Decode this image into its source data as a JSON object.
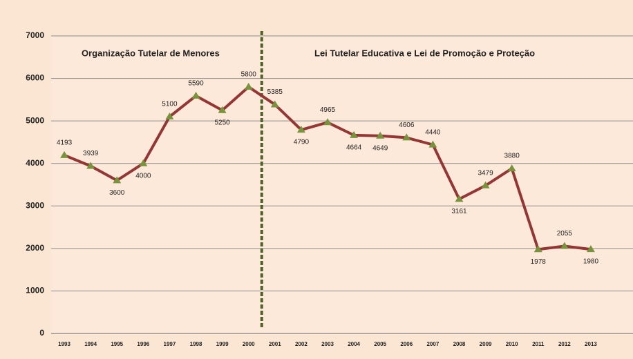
{
  "chart_data": {
    "type": "line",
    "categories": [
      "1993",
      "1994",
      "1995",
      "1996",
      "1997",
      "1998",
      "1999",
      "2000",
      "2001",
      "2002",
      "2003",
      "2004",
      "2005",
      "2006",
      "2007",
      "2008",
      "2009",
      "2010",
      "2011",
      "2012",
      "2013"
    ],
    "series": [
      {
        "color": "#943634",
        "marker_color": "#77933c",
        "values": [
          4193,
          3939,
          3600,
          4000,
          5100,
          5590,
          5250,
          5800,
          5385,
          4790,
          4965,
          4664,
          4649,
          4606,
          4440,
          3161,
          3479,
          3880,
          1978,
          2055,
          1980
        ]
      }
    ],
    "ylim": [
      0,
      7000
    ],
    "yticks": [
      0,
      1000,
      2000,
      3000,
      4000,
      5000,
      6000,
      7000
    ],
    "grid": true,
    "annotations": [
      "Organização Tutelar de Menores",
      "Lei Tutelar Educativa e Lei de Promoção e Proteção"
    ]
  }
}
